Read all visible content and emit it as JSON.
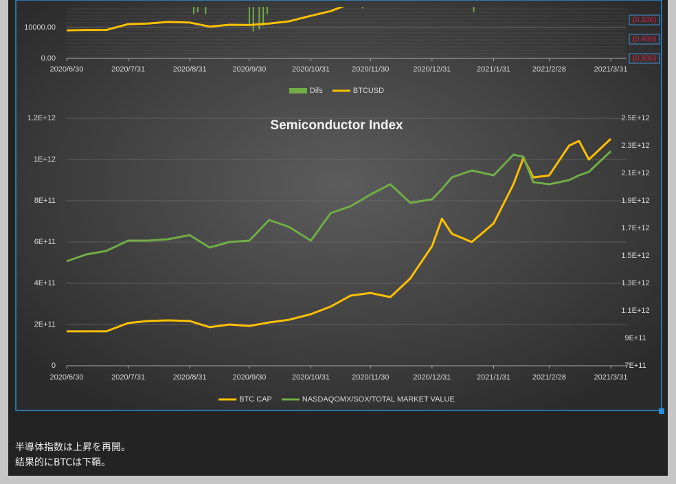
{
  "chart_data": [
    {
      "type": "combo",
      "legend": "bottom",
      "xlim": [
        "2020/6/30",
        "2021/3/31"
      ],
      "xticks": [
        "2020/6/30",
        "2020/7/31",
        "2020/8/31",
        "2020/9/30",
        "2020/10/31",
        "2020/11/30",
        "2020/12/31",
        "2021/1/31",
        "2021/2/28",
        "2021/3/31"
      ],
      "ylim": [
        0,
        16667
      ],
      "yticks": [
        {
          "value": 0,
          "label": "0.00"
        },
        {
          "value": 10000,
          "label": "10000.00"
        }
      ],
      "y2lim": [
        -0.5,
        -0.232
      ],
      "y2ticks": [
        {
          "value": -0.3,
          "label": "(0.300)"
        },
        {
          "value": -0.4,
          "label": "(0.400)"
        },
        {
          "value": -0.5,
          "label": "(0.500)"
        }
      ],
      "series": [
        {
          "name": "Difs",
          "type": "bar",
          "axis": "y2",
          "color": "#70ad47",
          "x": [
            "2020/9/2",
            "2020/9/4",
            "2020/9/8",
            "2020/9/30",
            "2020/10/2",
            "2020/10/5",
            "2020/10/7",
            "2020/10/9",
            "2020/11/26",
            "2021/1/21"
          ],
          "values": [
            -0.27,
            -0.26,
            -0.27,
            -0.32,
            -0.36,
            -0.35,
            -0.33,
            -0.27,
            -0.24,
            -0.26
          ]
        },
        {
          "name": "BTCUSD",
          "type": "line",
          "color": "#ffc000",
          "x": [
            "2020/6/30",
            "2020/7/10",
            "2020/7/20",
            "2020/7/31",
            "2020/8/10",
            "2020/8/20",
            "2020/8/31",
            "2020/9/10",
            "2020/9/20",
            "2020/9/30",
            "2020/10/10",
            "2020/10/20",
            "2020/10/31",
            "2020/11/10",
            "2020/11/20"
          ],
          "values": [
            9100,
            9200,
            9200,
            11100,
            11300,
            11800,
            11600,
            10300,
            10900,
            10800,
            11300,
            12000,
            13800,
            15300,
            17800
          ]
        }
      ]
    },
    {
      "type": "line",
      "title": "Semiconductor Index",
      "legend": "bottom",
      "xlim": [
        "2020/6/30",
        "2021/3/31"
      ],
      "xticks": [
        "2020/6/30",
        "2020/7/31",
        "2020/8/31",
        "2020/9/30",
        "2020/10/31",
        "2020/11/30",
        "2020/12/31",
        "2021/1/31",
        "2021/2/28",
        "2021/3/31"
      ],
      "ylim": [
        0,
        1200000000000.0
      ],
      "yticks": [
        0,
        {
          "value": 200000000000.0,
          "label": "2E+11"
        },
        {
          "value": 400000000000.0,
          "label": "4E+11"
        },
        {
          "value": 600000000000.0,
          "label": "6E+11"
        },
        {
          "value": 800000000000.0,
          "label": "8E+11"
        },
        {
          "value": 1000000000000.0,
          "label": "1E+12"
        },
        {
          "value": 1200000000000.0,
          "label": "1.2E+12"
        }
      ],
      "y2lim": [
        700000000000.0,
        2500000000000.0
      ],
      "y2ticks": [
        {
          "value": 700000000000.0,
          "label": "7E+11"
        },
        {
          "value": 900000000000.0,
          "label": "9E+11"
        },
        {
          "value": 1100000000000.0,
          "label": "1.1E+12"
        },
        {
          "value": 1300000000000.0,
          "label": "1.3E+12"
        },
        {
          "value": 1500000000000.0,
          "label": "1.5E+12"
        },
        {
          "value": 1700000000000.0,
          "label": "1.7E+12"
        },
        {
          "value": 1900000000000.0,
          "label": "1.9E+12"
        },
        {
          "value": 2100000000000.0,
          "label": "2.1E+12"
        },
        {
          "value": 2300000000000.0,
          "label": "2.3E+12"
        },
        {
          "value": 2500000000000.0,
          "label": "2.5E+12"
        }
      ],
      "grid": true,
      "x": [
        "2020/6/30",
        "2020/7/10",
        "2020/7/20",
        "2020/7/31",
        "2020/8/10",
        "2020/8/20",
        "2020/8/31",
        "2020/9/10",
        "2020/9/20",
        "2020/9/30",
        "2020/10/10",
        "2020/10/20",
        "2020/10/31",
        "2020/11/10",
        "2020/11/20",
        "2020/11/30",
        "2020/12/10",
        "2020/12/20",
        "2020/12/31",
        "2021/1/5",
        "2021/1/10",
        "2021/1/20",
        "2021/1/31",
        "2021/2/10",
        "2021/2/15",
        "2021/2/20",
        "2021/2/28",
        "2021/3/10",
        "2021/3/15",
        "2021/3/20",
        "2021/3/31"
      ],
      "series": [
        {
          "name": "BTC CAP",
          "color": "#ffc000",
          "values": [
            167000000000.0,
            167000000000.0,
            167000000000.0,
            207000000000.0,
            217000000000.0,
            220000000000.0,
            217000000000.0,
            187000000000.0,
            200000000000.0,
            193000000000.0,
            210000000000.0,
            223000000000.0,
            250000000000.0,
            287000000000.0,
            340000000000.0,
            353000000000.0,
            333000000000.0,
            423000000000.0,
            580000000000.0,
            713000000000.0,
            640000000000.0,
            600000000000.0,
            690000000000.0,
            880000000000.0,
            1007000000000.0,
            913000000000.0,
            923000000000.0,
            1067000000000.0,
            1090000000000.0,
            1000000000000.0,
            1100000000000.0
          ]
        },
        {
          "name": "NASDAQOMX/SOX/TOTAL MARKET VALUE",
          "color": "#70ad47",
          "axis": "y2",
          "values": [
            1460000000000.0,
            1510000000000.0,
            1535000000000.0,
            1610000000000.0,
            1610000000000.0,
            1620000000000.0,
            1650000000000.0,
            1560000000000.0,
            1600000000000.0,
            1610000000000.0,
            1760000000000.0,
            1710000000000.0,
            1610000000000.0,
            1810000000000.0,
            1860000000000.0,
            1945000000000.0,
            2020000000000.0,
            1885000000000.0,
            1910000000000.0,
            1985000000000.0,
            2070000000000.0,
            2120000000000.0,
            2085000000000.0,
            2235000000000.0,
            2220000000000.0,
            2035000000000.0,
            2020000000000.0,
            2050000000000.0,
            2085000000000.0,
            2110000000000.0,
            2260000000000.0
          ]
        }
      ]
    }
  ],
  "body_text": [
    "半導体指数は上昇を再開。",
    "結果的にBTCは下鞘。"
  ]
}
